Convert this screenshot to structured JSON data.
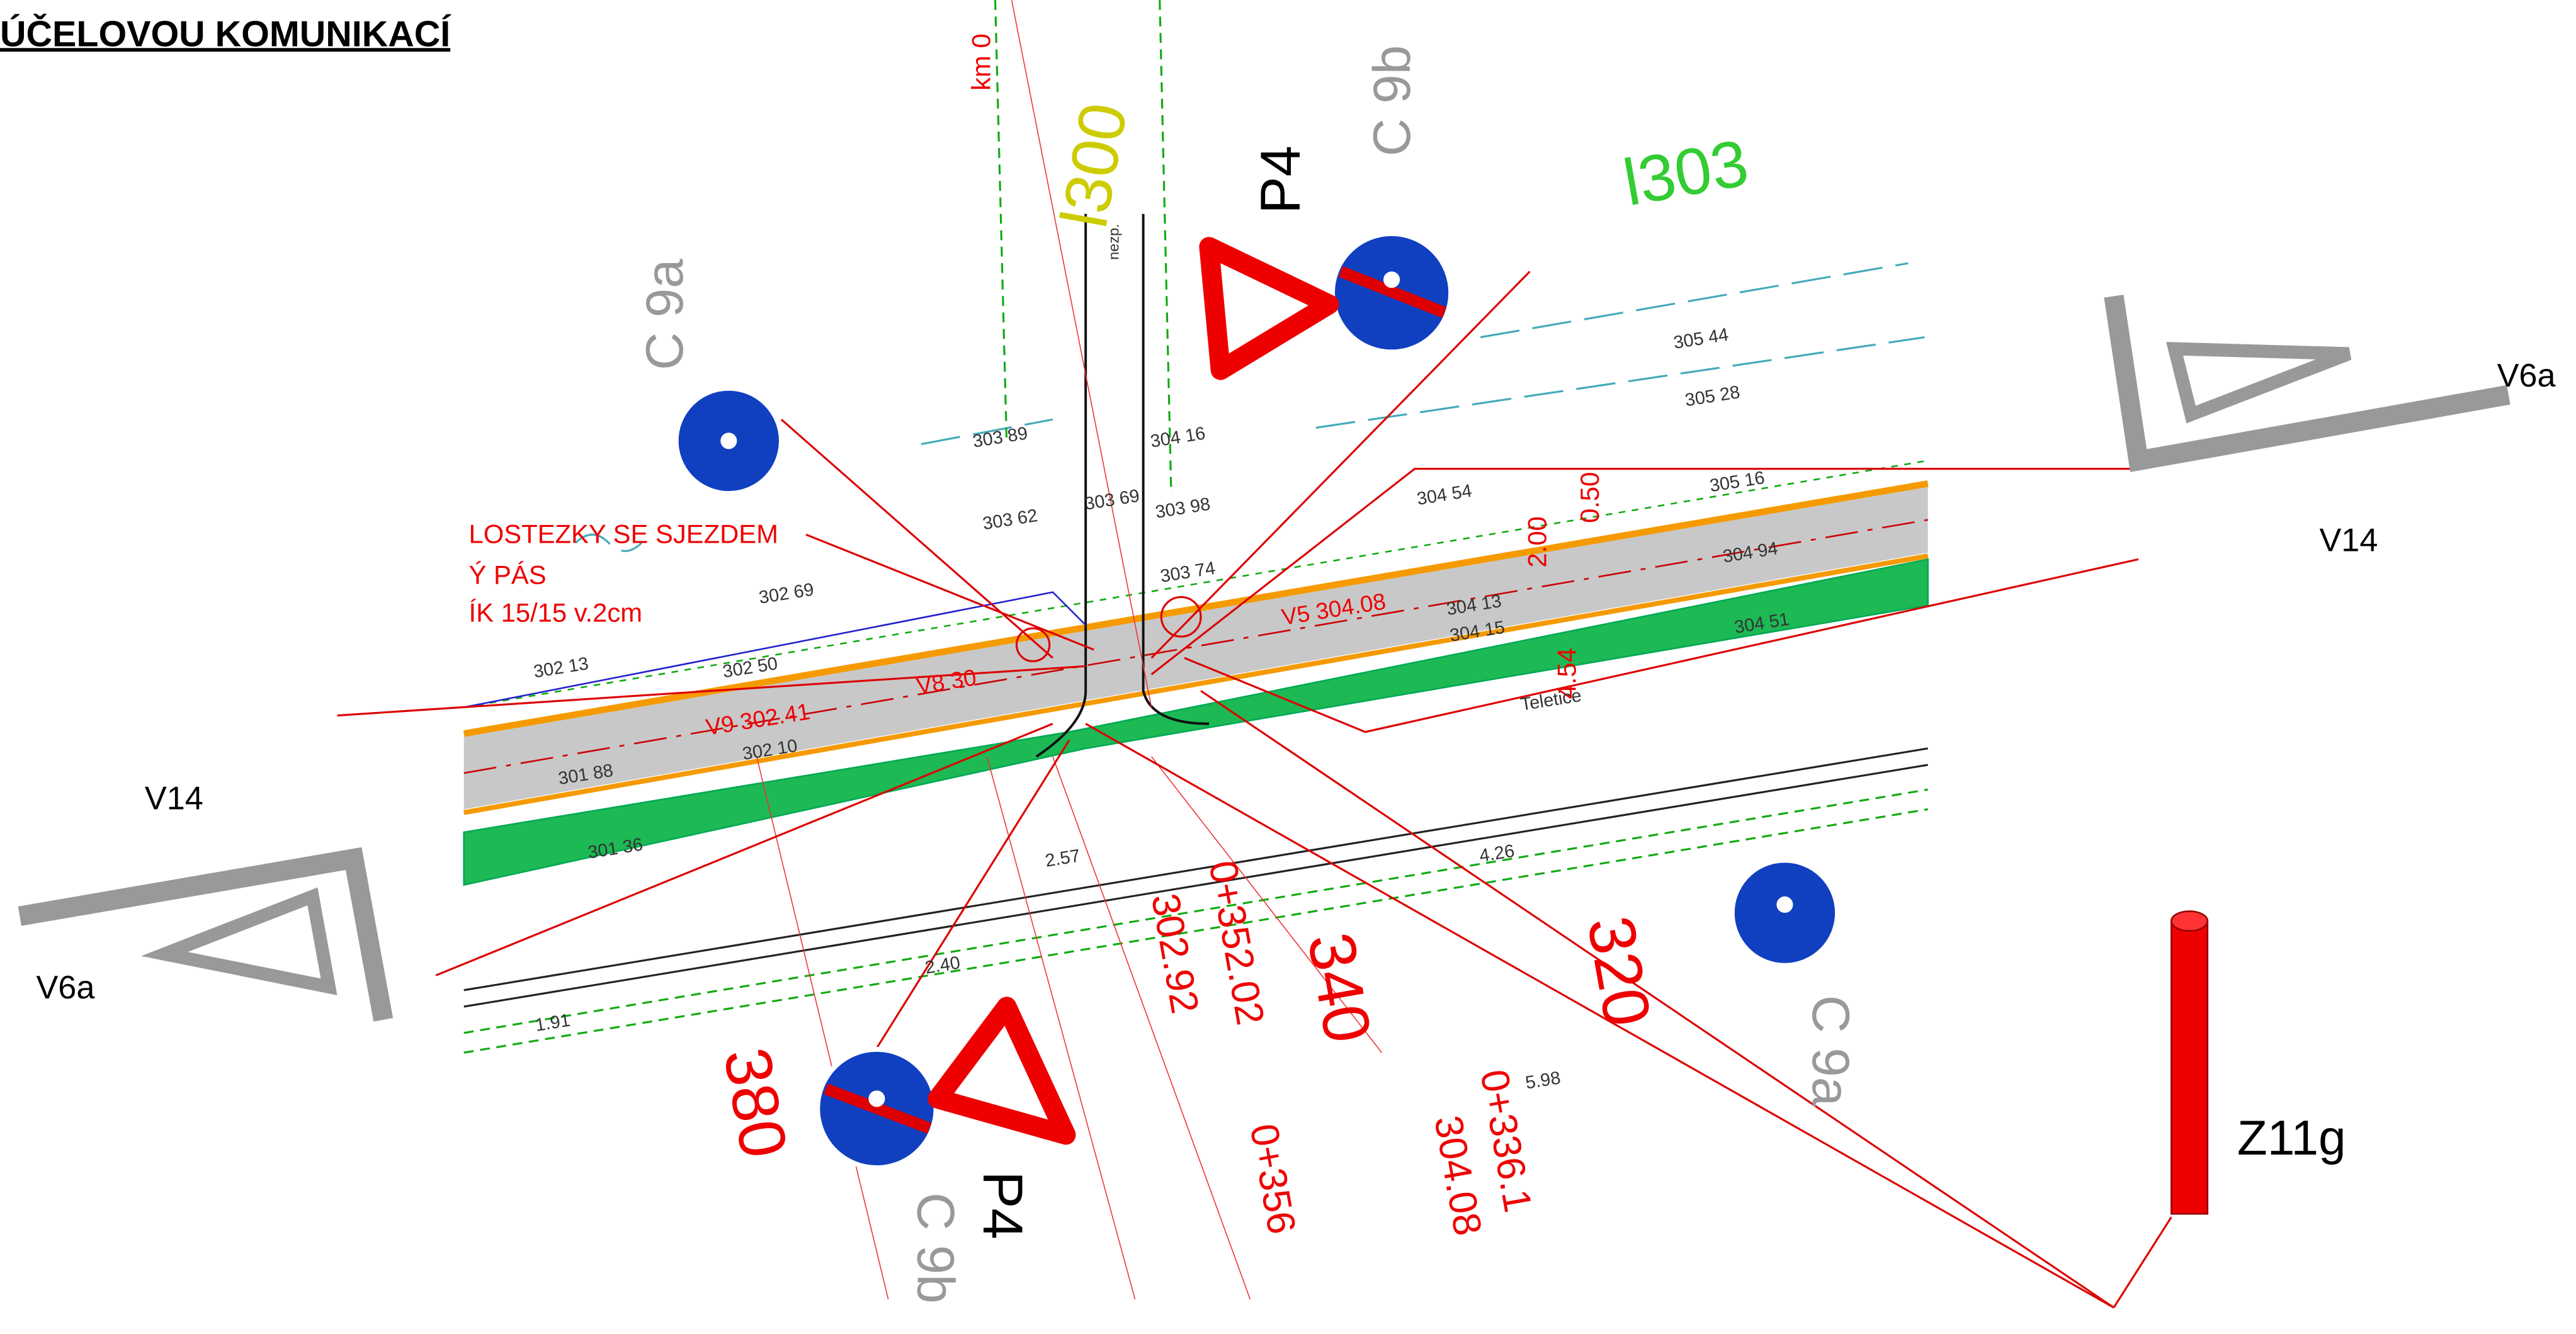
{
  "title": "ÚČELOVOU KOMUNIKACÍ",
  "labels": [
    "V14",
    "V14",
    "V6a",
    "V6a",
    "P4",
    "P4",
    "C 9a",
    "C 9a",
    "C 9b",
    "C 9b",
    "Z11g",
    "LOSTEZKY SE SJEZDEM",
    "Ý PÁS",
    "ÍK 15/15 v.2cm",
    "l300",
    "l303",
    "km 0",
    "0+352.02",
    "302.92",
    "340",
    "320",
    "380",
    "0+356",
    "0+336.1",
    "304.08",
    "V9 302.41",
    "V8 30",
    "V5 304.08",
    "2.00",
    "0.50",
    "4.54",
    "Teletice",
    "305 44",
    "305 28",
    "305 16",
    "304 94",
    "304 54",
    "304 13",
    "304 15",
    "304 51",
    "303 89",
    "303 62",
    "303 69",
    "303 98",
    "304 16",
    "303 74",
    "302 13",
    "302 50",
    "302 69",
    "301 88",
    "302 10",
    "301 36",
    "2.57",
    "2.40",
    "1.91",
    "4.26",
    "5.98",
    "nezp."
  ]
}
